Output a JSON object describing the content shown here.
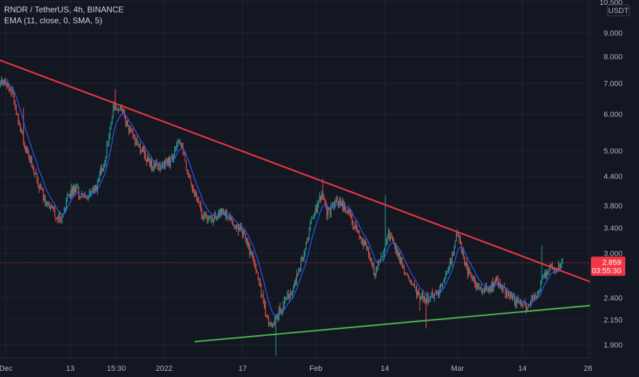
{
  "legend": {
    "symbol_line": "RNDR / TetherUS, 4h, BINANCE",
    "indicator_line": "EMA (11, close, 0, SMA, 5)"
  },
  "colors": {
    "background": "#131722",
    "grid": "#1f2430",
    "up_candle": "#26a69a",
    "down_candle": "#ef5350",
    "ema": "#2962ff",
    "resistance_line": "#f23645",
    "support_line": "#4caf50",
    "price_tag": "#f23645"
  },
  "chart_data": {
    "type": "candlestick",
    "title": "RNDR / TetherUS, 4h, BINANCE",
    "currency_label": "USDT",
    "y_scale": "log",
    "ylim": [
      1.78,
      10.6
    ],
    "xlim": [
      0,
      100
    ],
    "y_ticks": [
      {
        "value": 10.5,
        "label": "10.500"
      },
      {
        "value": 9.0,
        "label": "9.000"
      },
      {
        "value": 8.0,
        "label": "8.000"
      },
      {
        "value": 7.0,
        "label": "7.000"
      },
      {
        "value": 6.0,
        "label": "6.000"
      },
      {
        "value": 5.0,
        "label": "5.000"
      },
      {
        "value": 4.4,
        "label": "4.400"
      },
      {
        "value": 3.8,
        "label": "3.800"
      },
      {
        "value": 3.4,
        "label": "3.400"
      },
      {
        "value": 3.0,
        "label": "3.000"
      },
      {
        "value": 2.4,
        "label": "2.400"
      },
      {
        "value": 2.15,
        "label": "2.150"
      },
      {
        "value": 1.9,
        "label": "1.900"
      }
    ],
    "x_ticks": [
      {
        "pos": 1,
        "label": "Dec"
      },
      {
        "pos": 11.9,
        "label": "13"
      },
      {
        "pos": 19.7,
        "label": "15:30"
      },
      {
        "pos": 27.8,
        "label": "2022"
      },
      {
        "pos": 41.1,
        "label": "17"
      },
      {
        "pos": 53.5,
        "label": "Feb"
      },
      {
        "pos": 65.2,
        "label": "14"
      },
      {
        "pos": 77.5,
        "label": "Mar"
      },
      {
        "pos": 88.5,
        "label": "14"
      },
      {
        "pos": 99.6,
        "label": "28"
      }
    ],
    "current_price": {
      "value": 2.859,
      "label": "2.859",
      "countdown": "03:55:30"
    },
    "trendlines": [
      {
        "name": "resistance",
        "points": [
          [
            0,
            7.85
          ],
          [
            100,
            2.6
          ]
        ]
      },
      {
        "name": "support",
        "points": [
          [
            33.1,
            1.93
          ],
          [
            100,
            2.31
          ]
        ]
      }
    ],
    "anchors": [
      [
        0,
        6.9
      ],
      [
        0.5,
        7.1
      ],
      [
        2.2,
        6.6
      ],
      [
        4,
        5.2
      ],
      [
        4.8,
        4.9
      ],
      [
        6.3,
        4.3
      ],
      [
        8,
        3.8
      ],
      [
        10.4,
        3.55
      ],
      [
        11.5,
        4.0
      ],
      [
        12.6,
        4.15
      ],
      [
        14.4,
        3.95
      ],
      [
        16.1,
        4.1
      ],
      [
        17.8,
        4.8
      ],
      [
        19.3,
        6.2
      ],
      [
        20.7,
        6.1
      ],
      [
        22.4,
        5.4
      ],
      [
        24,
        5.0
      ],
      [
        25.8,
        4.6
      ],
      [
        27.5,
        4.65
      ],
      [
        29.2,
        4.8
      ],
      [
        30.4,
        5.3
      ],
      [
        31.7,
        4.5
      ],
      [
        33.3,
        3.9
      ],
      [
        34.5,
        3.6
      ],
      [
        36.2,
        3.55
      ],
      [
        37.9,
        3.7
      ],
      [
        39.6,
        3.5
      ],
      [
        41.2,
        3.3
      ],
      [
        42.9,
        2.9
      ],
      [
        44.1,
        2.5
      ],
      [
        45.3,
        2.15
      ],
      [
        46.4,
        2.12
      ],
      [
        48.1,
        2.35
      ],
      [
        49.8,
        2.55
      ],
      [
        51.5,
        3.0
      ],
      [
        52.7,
        3.5
      ],
      [
        54.4,
        4.0
      ],
      [
        55.5,
        3.65
      ],
      [
        57.2,
        3.9
      ],
      [
        58.9,
        3.7
      ],
      [
        60.6,
        3.3
      ],
      [
        62.3,
        3.05
      ],
      [
        63.4,
        2.72
      ],
      [
        64.6,
        2.9
      ],
      [
        65.7,
        3.3
      ],
      [
        67.4,
        3.0
      ],
      [
        69,
        2.65
      ],
      [
        70.8,
        2.45
      ],
      [
        72.4,
        2.4
      ],
      [
        74.1,
        2.45
      ],
      [
        75.8,
        2.7
      ],
      [
        77.5,
        3.3
      ],
      [
        79.1,
        2.75
      ],
      [
        80.8,
        2.55
      ],
      [
        82.5,
        2.5
      ],
      [
        84.2,
        2.6
      ],
      [
        85.9,
        2.45
      ],
      [
        87.5,
        2.35
      ],
      [
        89.2,
        2.3
      ],
      [
        90.9,
        2.45
      ],
      [
        92,
        2.65
      ],
      [
        93.1,
        2.8
      ],
      [
        94.3,
        2.78
      ],
      [
        95.4,
        2.86
      ]
    ],
    "wick_spikes": [
      {
        "pos": 4,
        "high": 6.2
      },
      {
        "pos": 19.5,
        "high": 6.8
      },
      {
        "pos": 54.6,
        "high": 4.35
      },
      {
        "pos": 65.3,
        "high": 4.0
      },
      {
        "pos": 77.4,
        "high": 3.38
      },
      {
        "pos": 91.7,
        "high": 3.12
      },
      {
        "pos": 46.7,
        "low": 1.8
      },
      {
        "pos": 72.1,
        "low": 2.06
      },
      {
        "pos": 71.1,
        "low": 2.25
      }
    ]
  }
}
